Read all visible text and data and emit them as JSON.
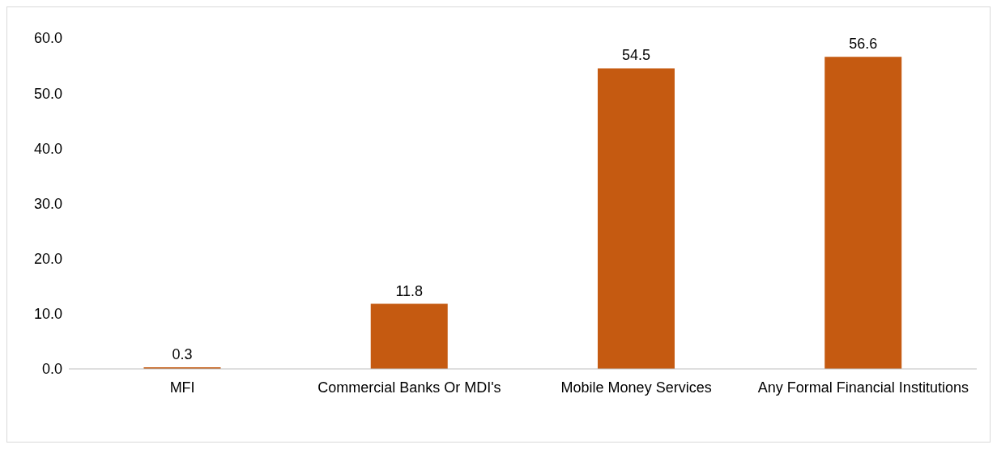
{
  "chart_data": {
    "type": "bar",
    "categories": [
      "MFI",
      "Commercial Banks Or MDI's",
      "Mobile Money Services",
      "Any Formal Financial Institutions"
    ],
    "values": [
      0.3,
      11.8,
      54.5,
      56.6
    ],
    "color": "#c55a11",
    "ylim": [
      0,
      60
    ],
    "yticks": [
      {
        "value": 0,
        "label": "0.0"
      },
      {
        "value": 10,
        "label": "10.0"
      },
      {
        "value": 20,
        "label": "20.0"
      },
      {
        "value": 30,
        "label": "30.0"
      },
      {
        "value": 40,
        "label": "40.0"
      },
      {
        "value": 50,
        "label": "50.0"
      },
      {
        "value": 60,
        "label": "60.0"
      }
    ],
    "data_labels": true,
    "grid": false,
    "legend": false
  }
}
